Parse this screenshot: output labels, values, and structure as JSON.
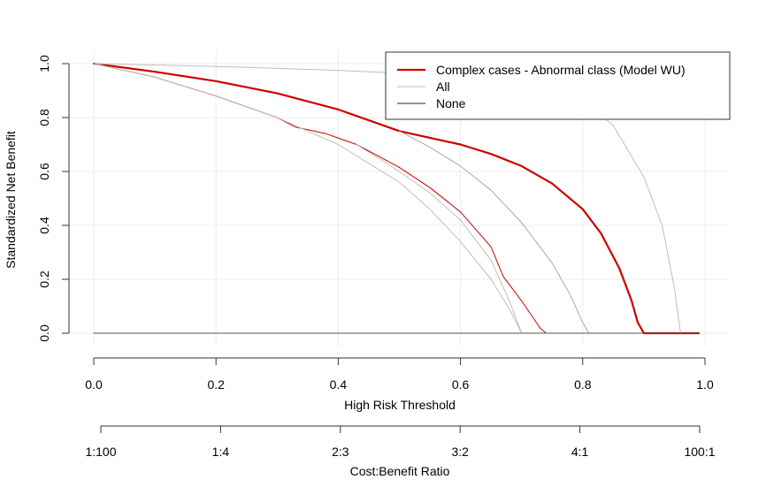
{
  "chart_data": {
    "type": "line",
    "xlabel": "High Risk Threshold",
    "ylabel": "Standardized Net Benefit",
    "xlim": [
      0,
      1
    ],
    "ylim": [
      0,
      1
    ],
    "grid": true,
    "legend_position": "top-right",
    "x_ticks": [
      "0.0",
      "0.2",
      "0.4",
      "0.6",
      "0.8",
      "1.0"
    ],
    "y_ticks": [
      "0.0",
      "0.2",
      "0.4",
      "0.6",
      "0.8",
      "1.0"
    ],
    "secondary_axis": {
      "label": "Cost:Benefit Ratio",
      "ticks": [
        "1:100",
        "1:4",
        "2:3",
        "3:2",
        "4:1",
        "100:1"
      ]
    },
    "legend": [
      {
        "label": "Complex cases - Abnormal class (Model WU)",
        "color": "#cc0000"
      },
      {
        "label": "All",
        "color": "#bebebe"
      },
      {
        "label": "None",
        "color": "#555555"
      }
    ],
    "series": [
      {
        "color": "#cc0000",
        "width": 2.2,
        "points": [
          [
            0,
            1
          ],
          [
            0.1,
            0.97
          ],
          [
            0.2,
            0.935
          ],
          [
            0.3,
            0.89
          ],
          [
            0.4,
            0.83
          ],
          [
            0.5,
            0.75
          ],
          [
            0.6,
            0.7
          ],
          [
            0.65,
            0.665
          ],
          [
            0.7,
            0.62
          ],
          [
            0.75,
            0.555
          ],
          [
            0.8,
            0.46
          ],
          [
            0.83,
            0.37
          ],
          [
            0.86,
            0.24
          ],
          [
            0.88,
            0.12
          ],
          [
            0.89,
            0.04
          ],
          [
            0.9,
            0
          ],
          [
            0.99,
            0
          ]
        ]
      },
      {
        "color": "#cc0000",
        "width": 1,
        "points": [
          [
            0,
            1
          ],
          [
            0.1,
            0.95
          ],
          [
            0.2,
            0.88
          ],
          [
            0.3,
            0.8
          ],
          [
            0.33,
            0.765
          ],
          [
            0.38,
            0.74
          ],
          [
            0.43,
            0.7
          ],
          [
            0.5,
            0.615
          ],
          [
            0.55,
            0.54
          ],
          [
            0.6,
            0.45
          ],
          [
            0.65,
            0.32
          ],
          [
            0.67,
            0.21
          ],
          [
            0.7,
            0.12
          ],
          [
            0.73,
            0.02
          ],
          [
            0.74,
            0
          ],
          [
            0.99,
            0
          ]
        ]
      },
      {
        "color": "#a8a8a8",
        "width": 1,
        "points": [
          [
            0.5,
            0.75
          ],
          [
            0.55,
            0.69
          ],
          [
            0.6,
            0.62
          ],
          [
            0.65,
            0.53
          ],
          [
            0.7,
            0.41
          ],
          [
            0.75,
            0.26
          ],
          [
            0.78,
            0.14
          ],
          [
            0.8,
            0.04
          ],
          [
            0.81,
            0
          ]
        ]
      },
      {
        "color": "#bebebe",
        "width": 1,
        "points": [
          [
            0.43,
            0.7
          ],
          [
            0.5,
            0.6
          ],
          [
            0.55,
            0.52
          ],
          [
            0.6,
            0.42
          ],
          [
            0.65,
            0.27
          ],
          [
            0.68,
            0.12
          ],
          [
            0.7,
            0
          ]
        ]
      },
      {
        "color": "#bebebe",
        "width": 1,
        "points": [
          [
            0,
            1
          ],
          [
            0.1,
            0.95
          ],
          [
            0.2,
            0.88
          ],
          [
            0.3,
            0.8
          ],
          [
            0.35,
            0.75
          ],
          [
            0.4,
            0.7
          ],
          [
            0.45,
            0.63
          ],
          [
            0.5,
            0.56
          ],
          [
            0.55,
            0.46
          ],
          [
            0.6,
            0.34
          ],
          [
            0.65,
            0.2
          ],
          [
            0.68,
            0.09
          ],
          [
            0.7,
            0
          ]
        ]
      },
      {
        "color": "#bebebe",
        "width": 1,
        "points": [
          [
            0,
            1
          ],
          [
            0.2,
            0.99
          ],
          [
            0.4,
            0.975
          ],
          [
            0.6,
            0.955
          ],
          [
            0.7,
            0.935
          ],
          [
            0.75,
            0.915
          ],
          [
            0.8,
            0.87
          ],
          [
            0.85,
            0.77
          ],
          [
            0.9,
            0.58
          ],
          [
            0.93,
            0.4
          ],
          [
            0.95,
            0.17
          ],
          [
            0.96,
            0
          ]
        ]
      },
      {
        "color": "#555555",
        "width": 1,
        "points": [
          [
            0,
            0
          ],
          [
            0.99,
            0
          ]
        ]
      }
    ]
  }
}
